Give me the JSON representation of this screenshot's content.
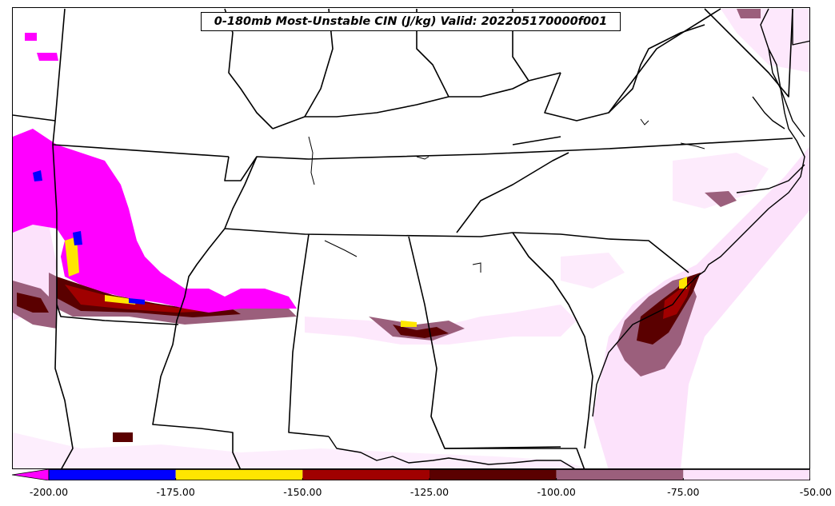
{
  "title": "0-180mb Most-Unstable CIN (J/kg) Valid: 202205170000f001",
  "colorbar": {
    "ticks": [
      "-200.00",
      "-175.00",
      "-150.00",
      "-125.00",
      "-100.00",
      "-75.00",
      "-50.00"
    ],
    "bins": [
      {
        "min": -200,
        "max": -175,
        "color": "#0000ff"
      },
      {
        "min": -175,
        "max": -150,
        "color": "#ffe600"
      },
      {
        "min": -150,
        "max": -125,
        "color": "#a00000"
      },
      {
        "min": -125,
        "max": -100,
        "color": "#5a0000"
      },
      {
        "min": -100,
        "max": -75,
        "color": "#9b5f7c"
      },
      {
        "min": -75,
        "max": -50,
        "color": "#fce2fb"
      }
    ],
    "under_color": "#ff00ff"
  }
}
